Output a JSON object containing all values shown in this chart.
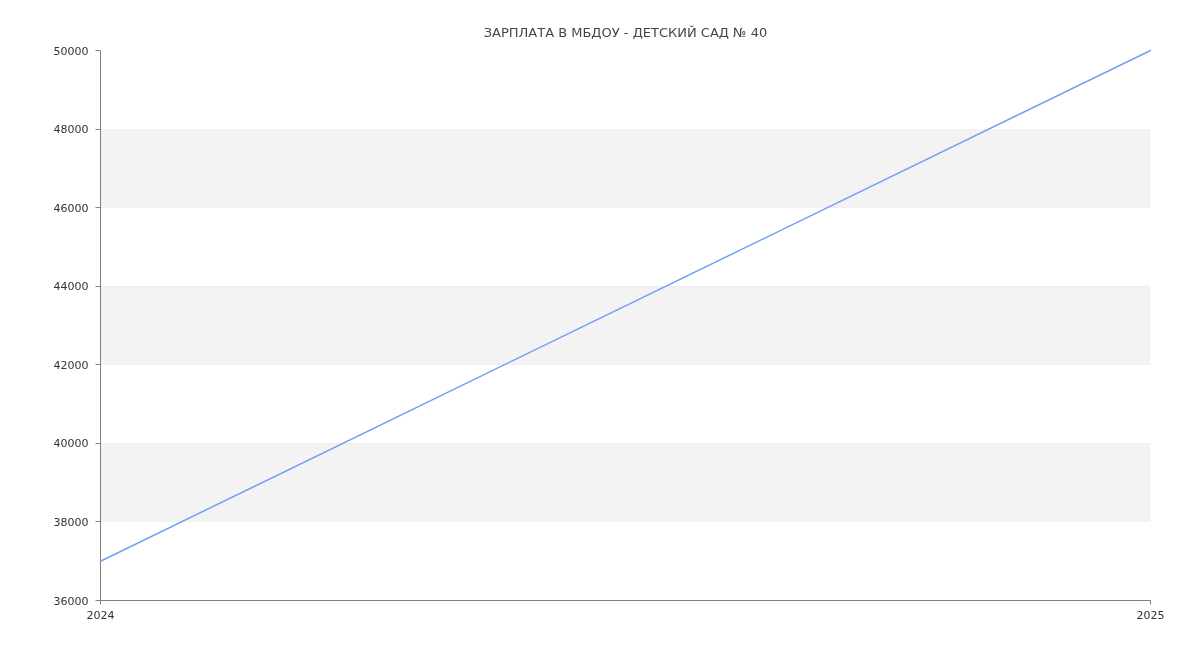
{
  "chart_data": {
    "type": "line",
    "title": "ЗАРПЛАТА В МБДОУ - ДЕТСКИЙ САД № 40",
    "x": [
      "2024",
      "2025"
    ],
    "series": [
      {
        "color": "#739ef5",
        "values": [
          37000,
          50000
        ]
      }
    ],
    "xlim": [
      "2024",
      "2025"
    ],
    "xticks": [
      "2024",
      "2025"
    ],
    "ylim": [
      36000,
      50000
    ],
    "yticks": [
      36000,
      38000,
      40000,
      42000,
      44000,
      46000,
      48000,
      50000
    ],
    "bands": [
      {
        "axis": "y",
        "from": 38000,
        "to": 40000,
        "color": "#f3f3f3"
      },
      {
        "axis": "y",
        "from": 42000,
        "to": 44000,
        "color": "#f3f3f3"
      },
      {
        "axis": "y",
        "from": 46000,
        "to": 48000,
        "color": "#f3f3f3"
      }
    ],
    "grid": true,
    "line_style": "solid"
  }
}
